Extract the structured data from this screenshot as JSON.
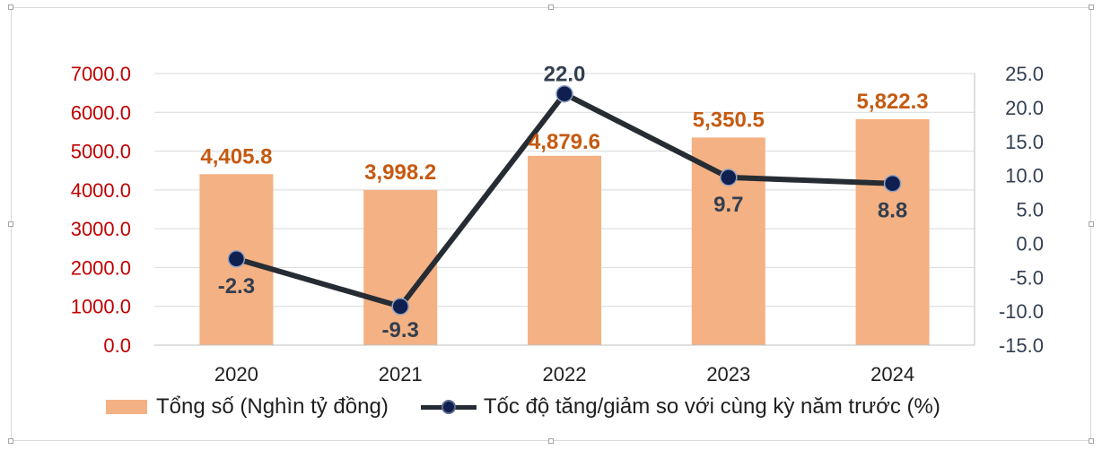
{
  "chart_data": {
    "type": "bar+line",
    "categories": [
      "2020",
      "2021",
      "2022",
      "2023",
      "2024"
    ],
    "series": [
      {
        "name": "Tổng số (Nghìn tỷ đồng)",
        "type": "bar",
        "axis": "left",
        "values": [
          4405.8,
          3998.2,
          4879.6,
          5350.5,
          5822.3
        ],
        "labels": [
          "4,405.8",
          "3,998.2",
          "4,879.6",
          "5,350.5",
          "5,822.3"
        ],
        "color": "#f4b183",
        "label_color": "#c55a11"
      },
      {
        "name": "Tốc độ tăng/giảm so với cùng kỳ năm trước (%)",
        "type": "line",
        "axis": "right",
        "values": [
          -2.3,
          -9.3,
          22.0,
          9.7,
          8.8
        ],
        "labels": [
          "-2.3",
          "-9.3",
          "22.0",
          "9.7",
          "8.8"
        ],
        "color": "#262c33",
        "marker_color": "#0e1f50",
        "label_color": "#333f50"
      }
    ],
    "y_left": {
      "min": 0,
      "max": 7000,
      "ticks": [
        0,
        1000,
        2000,
        3000,
        4000,
        5000,
        6000,
        7000
      ],
      "tick_labels": [
        "0.0",
        "1000.0",
        "2000.0",
        "3000.0",
        "4000.0",
        "5000.0",
        "6000.0",
        "7000.0"
      ],
      "color": "#c00000"
    },
    "y_right": {
      "min": -15,
      "max": 25,
      "ticks": [
        -15,
        -10,
        -5,
        0,
        5,
        10,
        15,
        20,
        25
      ],
      "tick_labels": [
        "-15.0",
        "-10.0",
        "-5.0",
        "0.0",
        "5.0",
        "10.0",
        "15.0",
        "20.0",
        "25.0"
      ],
      "color": "#333f50"
    },
    "grid": true,
    "legend_position": "bottom",
    "title": "",
    "xlabel": "",
    "ylabel": ""
  }
}
